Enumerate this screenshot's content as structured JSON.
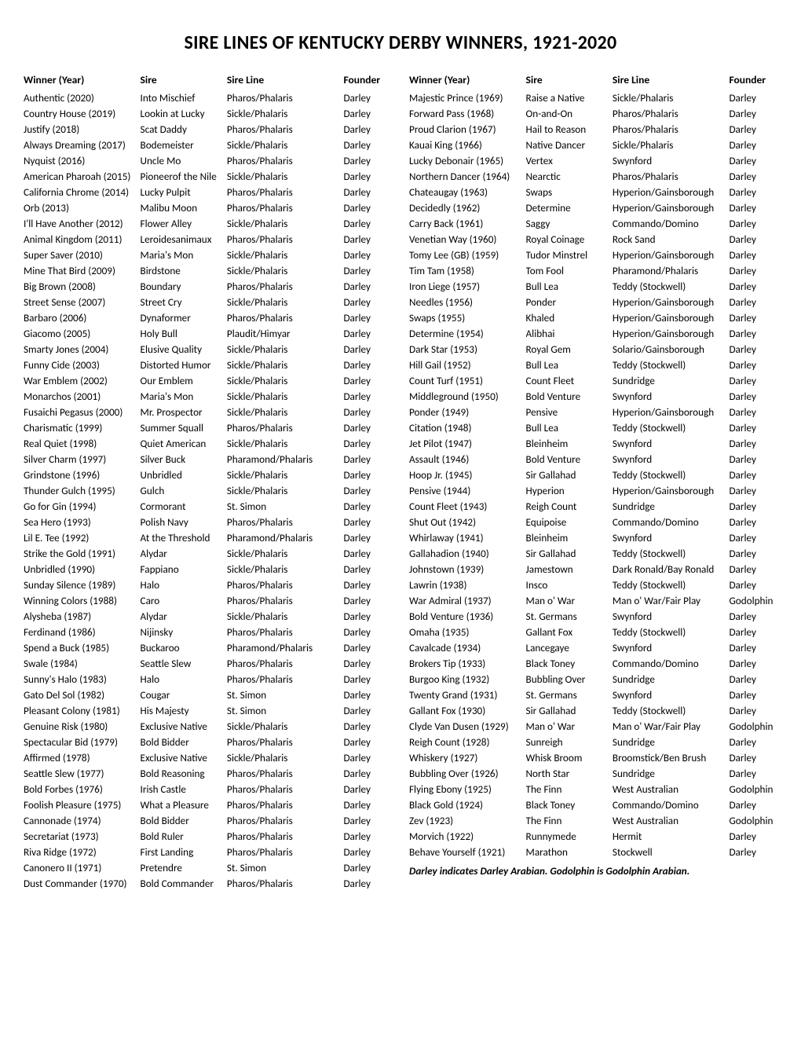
{
  "title": "SIRE LINES OF KENTUCKY DERBY WINNERS, 1921-2020",
  "headers": {
    "winner": "Winner (Year)",
    "sire": "Sire",
    "line": "Sire Line",
    "founder": "Founder"
  },
  "footnote": "Darley indicates Darley Arabian. Godolphin is Godolphin Arabian.",
  "left": [
    {
      "w": "Authentic (2020)",
      "s": "Into Mischief",
      "l": "Pharos/Phalaris",
      "f": "Darley"
    },
    {
      "w": "Country House (2019)",
      "s": "Lookin at Lucky",
      "l": "Sickle/Phalaris",
      "f": "Darley"
    },
    {
      "w": "Justify (2018)",
      "s": "Scat Daddy",
      "l": "Pharos/Phalaris",
      "f": "Darley"
    },
    {
      "w": "Always Dreaming (2017)",
      "s": "Bodemeister",
      "l": "Sickle/Phalaris",
      "f": "Darley"
    },
    {
      "w": "Nyquist (2016)",
      "s": "Uncle Mo",
      "l": "Pharos/Phalaris",
      "f": "Darley"
    },
    {
      "w": "American Pharoah (2015)",
      "s": "Pioneerof the Nile",
      "l": "Sickle/Phalaris",
      "f": "Darley"
    },
    {
      "w": "California Chrome (2014)",
      "s": "Lucky Pulpit",
      "l": "Pharos/Phalaris",
      "f": "Darley"
    },
    {
      "w": "Orb (2013)",
      "s": "Malibu Moon",
      "l": "Pharos/Phalaris",
      "f": "Darley"
    },
    {
      "w": "I'll Have Another (2012)",
      "s": "Flower Alley",
      "l": "Sickle/Phalaris",
      "f": "Darley"
    },
    {
      "w": "Animal Kingdom (2011)",
      "s": "Leroidesanimaux",
      "l": "Pharos/Phalaris",
      "f": "Darley"
    },
    {
      "w": "Super Saver (2010)",
      "s": "Maria's Mon",
      "l": "Sickle/Phalaris",
      "f": "Darley"
    },
    {
      "w": "Mine That Bird (2009)",
      "s": "Birdstone",
      "l": "Sickle/Phalaris",
      "f": "Darley"
    },
    {
      "w": "Big Brown (2008)",
      "s": "Boundary",
      "l": "Pharos/Phalaris",
      "f": "Darley"
    },
    {
      "w": "Street Sense (2007)",
      "s": "Street Cry",
      "l": "Sickle/Phalaris",
      "f": "Darley"
    },
    {
      "w": "Barbaro (2006)",
      "s": "Dynaformer",
      "l": "Pharos/Phalaris",
      "f": "Darley"
    },
    {
      "w": "Giacomo (2005)",
      "s": "Holy Bull",
      "l": "Plaudit/Himyar",
      "f": "Darley"
    },
    {
      "w": "Smarty Jones (2004)",
      "s": "Elusive Quality",
      "l": "Sickle/Phalaris",
      "f": "Darley"
    },
    {
      "w": "Funny Cide (2003)",
      "s": "Distorted Humor",
      "l": "Sickle/Phalaris",
      "f": "Darley"
    },
    {
      "w": "War Emblem (2002)",
      "s": "Our Emblem",
      "l": "Sickle/Phalaris",
      "f": "Darley"
    },
    {
      "w": "Monarchos (2001)",
      "s": "Maria's Mon",
      "l": "Sickle/Phalaris",
      "f": "Darley"
    },
    {
      "w": "Fusaichi Pegasus (2000)",
      "s": "Mr. Prospector",
      "l": "Sickle/Phalaris",
      "f": "Darley"
    },
    {
      "w": "Charismatic (1999)",
      "s": "Summer Squall",
      "l": "Pharos/Phalaris",
      "f": "Darley"
    },
    {
      "w": "Real Quiet (1998)",
      "s": "Quiet American",
      "l": "Sickle/Phalaris",
      "f": "Darley"
    },
    {
      "w": "Silver Charm (1997)",
      "s": "Silver Buck",
      "l": "Pharamond/Phalaris",
      "f": "Darley"
    },
    {
      "w": "Grindstone (1996)",
      "s": "Unbridled",
      "l": "Sickle/Phalaris",
      "f": "Darley"
    },
    {
      "w": "Thunder Gulch (1995)",
      "s": "Gulch",
      "l": "Sickle/Phalaris",
      "f": "Darley"
    },
    {
      "w": "Go for Gin (1994)",
      "s": "Cormorant",
      "l": "St. Simon",
      "f": "Darley"
    },
    {
      "w": "Sea Hero (1993)",
      "s": "Polish Navy",
      "l": "Pharos/Phalaris",
      "f": "Darley"
    },
    {
      "w": "Lil E. Tee (1992)",
      "s": "At the Threshold",
      "l": "Pharamond/Phalaris",
      "f": "Darley"
    },
    {
      "w": "Strike the Gold (1991)",
      "s": "Alydar",
      "l": "Sickle/Phalaris",
      "f": "Darley"
    },
    {
      "w": "Unbridled (1990)",
      "s": "Fappiano",
      "l": "Sickle/Phalaris",
      "f": "Darley"
    },
    {
      "w": "Sunday Silence (1989)",
      "s": "Halo",
      "l": "Pharos/Phalaris",
      "f": "Darley"
    },
    {
      "w": "Winning Colors (1988)",
      "s": "Caro",
      "l": "Pharos/Phalaris",
      "f": "Darley"
    },
    {
      "w": "Alysheba (1987)",
      "s": "Alydar",
      "l": "Sickle/Phalaris",
      "f": "Darley"
    },
    {
      "w": "Ferdinand (1986)",
      "s": "Nijinsky",
      "l": "Pharos/Phalaris",
      "f": "Darley"
    },
    {
      "w": "Spend a Buck (1985)",
      "s": "Buckaroo",
      "l": "Pharamond/Phalaris",
      "f": "Darley"
    },
    {
      "w": "Swale (1984)",
      "s": "Seattle Slew",
      "l": "Pharos/Phalaris",
      "f": "Darley"
    },
    {
      "w": "Sunny's Halo (1983)",
      "s": "Halo",
      "l": "Pharos/Phalaris",
      "f": "Darley"
    },
    {
      "w": "Gato Del Sol (1982)",
      "s": "Cougar",
      "l": "St. Simon",
      "f": "Darley"
    },
    {
      "w": "Pleasant Colony (1981)",
      "s": "His Majesty",
      "l": "St. Simon",
      "f": "Darley"
    },
    {
      "w": "Genuine Risk (1980)",
      "s": "Exclusive Native",
      "l": "Sickle/Phalaris",
      "f": "Darley"
    },
    {
      "w": "Spectacular Bid (1979)",
      "s": "Bold Bidder",
      "l": "Pharos/Phalaris",
      "f": "Darley"
    },
    {
      "w": "Affirmed (1978)",
      "s": "Exclusive Native",
      "l": "Sickle/Phalaris",
      "f": "Darley"
    },
    {
      "w": "Seattle Slew (1977)",
      "s": "Bold Reasoning",
      "l": "Pharos/Phalaris",
      "f": "Darley"
    },
    {
      "w": "Bold Forbes (1976)",
      "s": "Irish Castle",
      "l": "Pharos/Phalaris",
      "f": "Darley"
    },
    {
      "w": "Foolish Pleasure (1975)",
      "s": "What a Pleasure",
      "l": "Pharos/Phalaris",
      "f": "Darley"
    },
    {
      "w": "Cannonade (1974)",
      "s": "Bold Bidder",
      "l": "Pharos/Phalaris",
      "f": "Darley"
    },
    {
      "w": "Secretariat (1973)",
      "s": "Bold Ruler",
      "l": "Pharos/Phalaris",
      "f": "Darley"
    },
    {
      "w": "Riva Ridge (1972)",
      "s": "First Landing",
      "l": "Pharos/Phalaris",
      "f": "Darley"
    },
    {
      "w": "Canonero II (1971)",
      "s": "Pretendre",
      "l": "St. Simon",
      "f": "Darley"
    },
    {
      "w": "Dust Commander (1970)",
      "s": "Bold Commander",
      "l": "Pharos/Phalaris",
      "f": "Darley"
    }
  ],
  "right": [
    {
      "w": "Majestic Prince (1969)",
      "s": "Raise a Native",
      "l": "Sickle/Phalaris",
      "f": "Darley"
    },
    {
      "w": "Forward Pass (1968)",
      "s": "On-and-On",
      "l": "Pharos/Phalaris",
      "f": "Darley"
    },
    {
      "w": "Proud Clarion (1967)",
      "s": "Hail to Reason",
      "l": "Pharos/Phalaris",
      "f": "Darley"
    },
    {
      "w": "Kauai King (1966)",
      "s": "Native Dancer",
      "l": "Sickle/Phalaris",
      "f": "Darley"
    },
    {
      "w": "Lucky Debonair (1965)",
      "s": "Vertex",
      "l": "Swynford",
      "f": "Darley"
    },
    {
      "w": "Northern Dancer (1964)",
      "s": "Nearctic",
      "l": "Pharos/Phalaris",
      "f": "Darley"
    },
    {
      "w": "Chateaugay (1963)",
      "s": "Swaps",
      "l": "Hyperion/Gainsborough",
      "f": "Darley"
    },
    {
      "w": "Decidedly (1962)",
      "s": "Determine",
      "l": "Hyperion/Gainsborough",
      "f": "Darley"
    },
    {
      "w": "Carry Back (1961)",
      "s": "Saggy",
      "l": "Commando/Domino",
      "f": "Darley"
    },
    {
      "w": "Venetian Way (1960)",
      "s": "Royal Coinage",
      "l": "Rock Sand",
      "f": "Darley"
    },
    {
      "w": "Tomy Lee (GB) (1959)",
      "s": "Tudor Minstrel",
      "l": "Hyperion/Gainsborough",
      "f": "Darley"
    },
    {
      "w": "Tim Tam (1958)",
      "s": "Tom Fool",
      "l": "Pharamond/Phalaris",
      "f": "Darley"
    },
    {
      "w": "Iron Liege (1957)",
      "s": "Bull Lea",
      "l": "Teddy (Stockwell)",
      "f": "Darley"
    },
    {
      "w": "Needles (1956)",
      "s": "Ponder",
      "l": "Hyperion/Gainsborough",
      "f": "Darley"
    },
    {
      "w": "Swaps (1955)",
      "s": "Khaled",
      "l": "Hyperion/Gainsborough",
      "f": "Darley"
    },
    {
      "w": "Determine (1954)",
      "s": "Alibhai",
      "l": "Hyperion/Gainsborough",
      "f": "Darley"
    },
    {
      "w": "Dark Star (1953)",
      "s": "Royal Gem",
      "l": "Solario/Gainsborough",
      "f": "Darley"
    },
    {
      "w": "Hill Gail (1952)",
      "s": "Bull Lea",
      "l": "Teddy (Stockwell)",
      "f": "Darley"
    },
    {
      "w": "Count Turf (1951)",
      "s": "Count Fleet",
      "l": "Sundridge",
      "f": "Darley"
    },
    {
      "w": "Middleground (1950)",
      "s": "Bold Venture",
      "l": "Swynford",
      "f": "Darley"
    },
    {
      "w": "Ponder (1949)",
      "s": "Pensive",
      "l": "Hyperion/Gainsborough",
      "f": "Darley"
    },
    {
      "w": "Citation (1948)",
      "s": "Bull Lea",
      "l": "Teddy (Stockwell)",
      "f": "Darley"
    },
    {
      "w": "Jet Pilot (1947)",
      "s": "Bleinheim",
      "l": "Swynford",
      "f": "Darley"
    },
    {
      "w": "Assault (1946)",
      "s": "Bold Venture",
      "l": "Swynford",
      "f": "Darley"
    },
    {
      "w": "Hoop Jr. (1945)",
      "s": "Sir Gallahad",
      "l": "Teddy (Stockwell)",
      "f": "Darley"
    },
    {
      "w": "Pensive (1944)",
      "s": "Hyperion",
      "l": "Hyperion/Gainsborough",
      "f": "Darley"
    },
    {
      "w": "Count Fleet (1943)",
      "s": "Reigh Count",
      "l": "Sundridge",
      "f": "Darley"
    },
    {
      "w": "Shut Out (1942)",
      "s": "Equipoise",
      "l": "Commando/Domino",
      "f": "Darley"
    },
    {
      "w": "Whirlaway (1941)",
      "s": "Bleinheim",
      "l": "Swynford",
      "f": "Darley"
    },
    {
      "w": "Gallahadion (1940)",
      "s": "Sir Gallahad",
      "l": "Teddy (Stockwell)",
      "f": "Darley"
    },
    {
      "w": "Johnstown (1939)",
      "s": "Jamestown",
      "l": "Dark Ronald/Bay Ronald",
      "f": "Darley"
    },
    {
      "w": "Lawrin (1938)",
      "s": "Insco",
      "l": "Teddy (Stockwell)",
      "f": "Darley"
    },
    {
      "w": "War Admiral (1937)",
      "s": "Man o' War",
      "l": "Man o' War/Fair Play",
      "f": "Godolphin"
    },
    {
      "w": "Bold Venture (1936)",
      "s": "St. Germans",
      "l": "Swynford",
      "f": "Darley"
    },
    {
      "w": "Omaha (1935)",
      "s": "Gallant Fox",
      "l": "Teddy (Stockwell)",
      "f": "Darley"
    },
    {
      "w": "Cavalcade (1934)",
      "s": "Lancegaye",
      "l": "Swynford",
      "f": "Darley"
    },
    {
      "w": "Brokers Tip (1933)",
      "s": "Black Toney",
      "l": "Commando/Domino",
      "f": "Darley"
    },
    {
      "w": "Burgoo King (1932)",
      "s": "Bubbling Over",
      "l": "Sundridge",
      "f": "Darley"
    },
    {
      "w": "Twenty Grand (1931)",
      "s": "St. Germans",
      "l": "Swynford",
      "f": "Darley"
    },
    {
      "w": "Gallant Fox (1930)",
      "s": "Sir Gallahad",
      "l": "Teddy (Stockwell)",
      "f": "Darley"
    },
    {
      "w": "Clyde Van Dusen (1929)",
      "s": "Man o' War",
      "l": "Man o' War/Fair Play",
      "f": "Godolphin"
    },
    {
      "w": "Reigh Count (1928)",
      "s": "Sunreigh",
      "l": "Sundridge",
      "f": "Darley"
    },
    {
      "w": "Whiskery (1927)",
      "s": "Whisk Broom",
      "l": "Broomstick/Ben Brush",
      "f": "Darley"
    },
    {
      "w": "Bubbling Over (1926)",
      "s": "North Star",
      "l": "Sundridge",
      "f": "Darley"
    },
    {
      "w": "Flying Ebony (1925)",
      "s": "The Finn",
      "l": "West Australian",
      "f": "Godolphin"
    },
    {
      "w": "Black Gold (1924)",
      "s": "Black Toney",
      "l": "Commando/Domino",
      "f": "Darley"
    },
    {
      "w": "Zev (1923)",
      "s": "The Finn",
      "l": "West Australian",
      "f": "Godolphin"
    },
    {
      "w": "Morvich (1922)",
      "s": "Runnymede",
      "l": "Hermit",
      "f": "Darley"
    },
    {
      "w": "Behave Yourself (1921)",
      "s": "Marathon",
      "l": "Stockwell",
      "f": "Darley"
    }
  ]
}
